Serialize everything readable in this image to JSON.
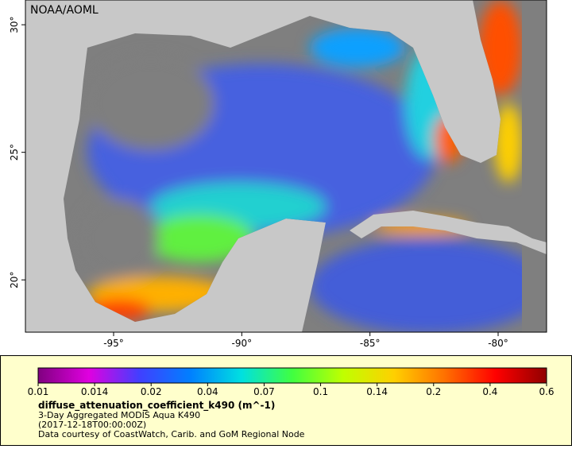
{
  "map": {
    "label": "NOAA/AOML",
    "xlim": [
      -98.44,
      -78.11
    ],
    "ylim": [
      17.95,
      30.97
    ],
    "xticks": [
      {
        "value": -95,
        "label": "-95°"
      },
      {
        "value": -90,
        "label": "-90°"
      },
      {
        "value": -85,
        "label": "-85°"
      },
      {
        "value": -80,
        "label": "-80°"
      }
    ],
    "yticks": [
      {
        "value": 20,
        "label": "20°"
      },
      {
        "value": 25,
        "label": "25°"
      },
      {
        "value": 30,
        "label": "30°"
      }
    ]
  },
  "colorbar": {
    "ticks": [
      0.01,
      0.014,
      0.02,
      0.04,
      0.07,
      0.1,
      0.14,
      0.2,
      0.4,
      0.6
    ],
    "colors": [
      "#800080",
      "#e000e0",
      "#4040ff",
      "#0080ff",
      "#00e0e0",
      "#40ff40",
      "#c0ff00",
      "#ffd000",
      "#ff7000",
      "#ff0000",
      "#900000"
    ]
  },
  "legend": {
    "variable": "diffuse_attenuation_coefficient_k490 (m^-1)",
    "lines": [
      "3-Day Aggregated MODIS Aqua K490",
      "(2017-12-18T00:00:00Z)",
      "Data courtesy of CoastWatch, Carib. and GoM Regional Node"
    ]
  }
}
